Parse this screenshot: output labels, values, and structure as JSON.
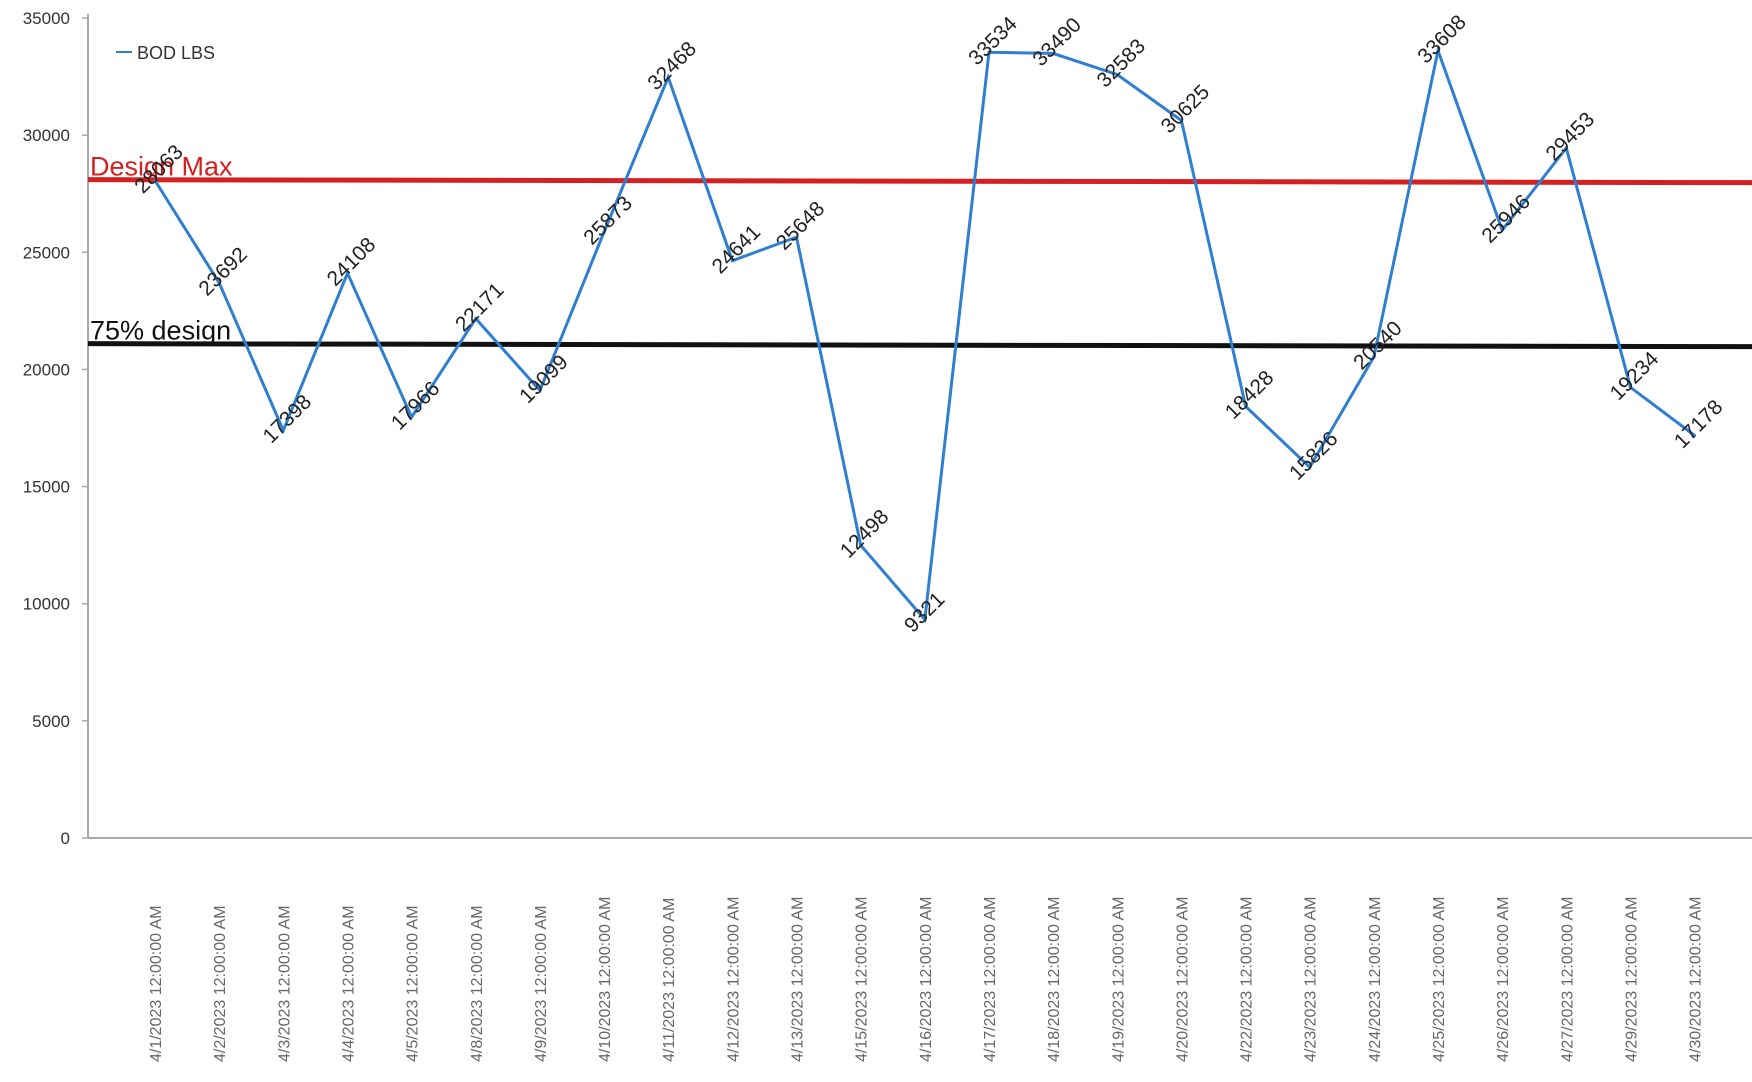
{
  "chart_data": {
    "type": "line",
    "x": [
      "4/1/2023 12:00:00 AM",
      "4/2/2023 12:00:00 AM",
      "4/3/2023 12:00:00 AM",
      "4/4/2023 12:00:00 AM",
      "4/5/2023 12:00:00 AM",
      "4/8/2023 12:00:00 AM",
      "4/9/2023 12:00:00 AM",
      "4/10/2023 12:00:00 AM",
      "4/11/2023 12:00:00 AM",
      "4/12/2023 12:00:00 AM",
      "4/13/2023 12:00:00 AM",
      "4/15/2023 12:00:00 AM",
      "4/16/2023 12:00:00 AM",
      "4/17/2023 12:00:00 AM",
      "4/18/2023 12:00:00 AM",
      "4/19/2023 12:00:00 AM",
      "4/20/2023 12:00:00 AM",
      "4/22/2023 12:00:00 AM",
      "4/23/2023 12:00:00 AM",
      "4/24/2023 12:00:00 AM",
      "4/25/2023 12:00:00 AM",
      "4/26/2023 12:00:00 AM",
      "4/27/2023 12:00:00 AM",
      "4/29/2023 12:00:00 AM",
      "4/30/2023 12:00:00 AM"
    ],
    "series": [
      {
        "name": "BOD LBS",
        "values": [
          28063,
          23692,
          17398,
          24108,
          17966,
          22171,
          19099,
          25873,
          32468,
          24641,
          25648,
          12498,
          9321,
          33534,
          33490,
          32583,
          30625,
          18428,
          15826,
          20540,
          33608,
          25946,
          29453,
          19234,
          17178
        ],
        "labels": [
          "28063",
          "23692",
          "17398",
          "24108",
          "17966",
          "22171",
          "19099",
          "25873",
          "32468",
          "24641",
          "25648",
          "12498",
          "9321",
          "33534",
          "33490",
          "32583",
          "30625",
          "18428",
          "15826",
          "20540",
          "33608",
          "25946",
          "29453",
          "19234",
          "17178"
        ],
        "color": "#2e7fd0"
      }
    ],
    "reference_lines": [
      {
        "label": "Design Max",
        "value": 28100,
        "color": "#d42020"
      },
      {
        "label": "75% design",
        "value": 21100,
        "color": "#111111"
      }
    ],
    "yticks": [
      "0",
      "5000",
      "10000",
      "15000",
      "20000",
      "25000",
      "30000",
      "35000"
    ],
    "ylim": [
      0,
      35000
    ],
    "legend": {
      "label": "BOD LBS",
      "position": "top-left"
    },
    "grid": false
  }
}
